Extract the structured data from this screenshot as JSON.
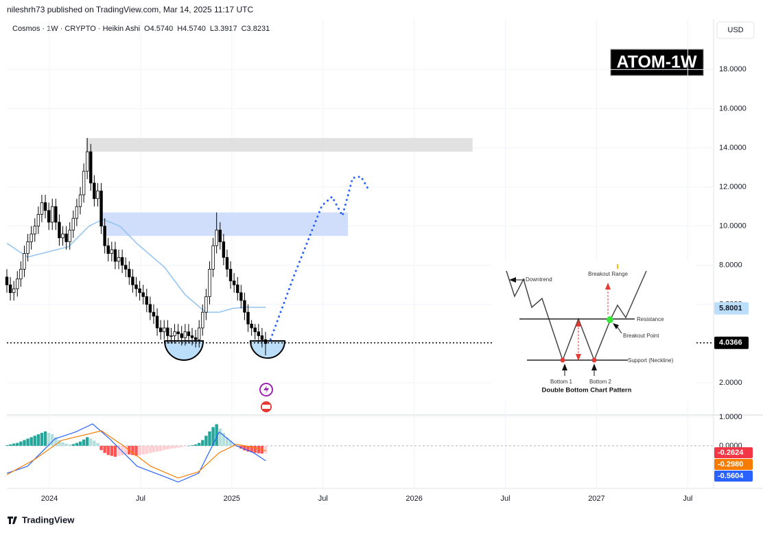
{
  "header": {
    "publisher": "nileshrh73 published on TradingView.com, Mar 14, 2025 11:17 UTC",
    "legend": "Cosmos · 1W · CRYPTO · Heikin Ashi",
    "ohlc": [
      "O4.5740",
      "H4.5740",
      "L3.3917",
      "C3.8231"
    ],
    "currency": "USD",
    "badge": "ATOM-1W"
  },
  "chart_data": [
    {
      "type": "candlestick",
      "x": [
        -2.8,
        -2.57,
        -2.34,
        -2.11,
        -1.88,
        -1.65,
        -1.42,
        -1.19,
        -0.96,
        -0.73,
        -0.5,
        -0.27,
        -0.04,
        0.19,
        0.42,
        0.65,
        0.88,
        1.11,
        1.34,
        1.57,
        1.8,
        2.03,
        2.26,
        2.49,
        2.72,
        2.95,
        3.18,
        3.41,
        3.64,
        3.87,
        4.1,
        4.33,
        4.56,
        4.79,
        5.02,
        5.25,
        5.48,
        5.71,
        5.94,
        6.17,
        6.4,
        6.63,
        6.86,
        7.09,
        7.32,
        7.55,
        7.78,
        8.01,
        8.24,
        8.47,
        8.7,
        8.93,
        9.16,
        9.39,
        9.62,
        9.85,
        10.08,
        10.31,
        10.54,
        10.77,
        11.0,
        11.23,
        11.46,
        11.69,
        11.92,
        12.15,
        12.38,
        12.61,
        12.84,
        13.07,
        13.3,
        13.53,
        13.76,
        13.99,
        14.22
      ],
      "open": [
        7.4,
        7.0,
        6.6,
        6.8,
        7.3,
        7.8,
        8.6,
        9.2,
        9.6,
        10.0,
        10.6,
        11.2,
        10.8,
        10.2,
        11.0,
        10.2,
        9.4,
        9.6,
        9.2,
        9.8,
        10.4,
        11.0,
        11.6,
        12.8,
        13.8,
        12.2,
        11.4,
        11.8,
        10.0,
        9.0,
        8.6,
        8.8,
        8.2,
        8.4,
        8.0,
        7.8,
        7.4,
        7.0,
        6.8,
        6.6,
        6.4,
        6.0,
        5.6,
        5.4,
        4.8,
        4.6,
        4.8,
        4.4,
        4.4,
        4.6,
        4.5,
        4.3,
        4.6,
        4.4,
        4.3,
        4.2,
        4.8,
        5.6,
        6.4,
        7.8,
        9.0,
        9.8,
        9.2,
        8.4,
        7.8,
        7.2,
        7.0,
        6.6,
        6.2,
        5.6,
        5.0,
        4.8,
        4.6,
        4.4,
        4.2
      ],
      "high": [
        7.8,
        7.4,
        7.2,
        7.7,
        8.2,
        9.0,
        9.6,
        10.0,
        10.4,
        11.0,
        11.6,
        11.6,
        11.2,
        11.4,
        11.4,
        10.6,
        10.0,
        10.0,
        10.2,
        10.8,
        11.4,
        12.0,
        13.2,
        14.5,
        14.2,
        12.6,
        12.2,
        12.2,
        10.4,
        9.4,
        9.2,
        9.2,
        8.8,
        8.8,
        8.4,
        8.2,
        7.8,
        7.4,
        7.2,
        7.0,
        6.8,
        6.4,
        6.0,
        5.8,
        5.2,
        5.2,
        5.2,
        4.8,
        5.0,
        5.0,
        4.9,
        5.0,
        5.0,
        4.8,
        4.7,
        5.2,
        6.0,
        6.8,
        8.2,
        9.4,
        10.7,
        10.2,
        9.6,
        8.8,
        8.2,
        7.6,
        7.4,
        7.0,
        6.6,
        6.0,
        5.2,
        5.0,
        5.0,
        4.8,
        4.6
      ],
      "low": [
        6.6,
        6.2,
        6.2,
        6.4,
        6.9,
        7.4,
        8.2,
        8.8,
        9.2,
        9.6,
        10.2,
        10.4,
        9.8,
        9.8,
        9.8,
        9.0,
        9.0,
        8.8,
        8.8,
        9.4,
        10.0,
        10.6,
        11.2,
        12.4,
        11.8,
        11.0,
        11.0,
        9.6,
        8.6,
        8.2,
        8.2,
        7.8,
        7.8,
        7.6,
        7.4,
        7.0,
        6.6,
        6.4,
        6.2,
        6.0,
        5.6,
        5.2,
        5.0,
        4.4,
        4.2,
        4.2,
        4.0,
        4.0,
        4.0,
        4.1,
        3.9,
        3.9,
        4.0,
        3.9,
        3.8,
        3.8,
        4.4,
        5.2,
        6.0,
        7.4,
        8.6,
        8.8,
        8.0,
        7.4,
        6.8,
        6.6,
        6.2,
        5.8,
        5.2,
        4.6,
        4.4,
        4.2,
        4.0,
        3.8,
        3.4
      ],
      "close": [
        7.0,
        6.6,
        6.8,
        7.3,
        7.8,
        8.6,
        9.2,
        9.6,
        10.0,
        10.6,
        11.2,
        10.8,
        10.2,
        11.0,
        10.2,
        9.4,
        9.6,
        9.2,
        9.8,
        10.4,
        11.0,
        11.6,
        12.8,
        13.8,
        12.2,
        11.4,
        11.8,
        10.0,
        9.0,
        8.6,
        8.8,
        8.2,
        8.4,
        8.0,
        7.8,
        7.4,
        7.0,
        6.8,
        6.6,
        6.4,
        6.0,
        5.6,
        5.4,
        4.8,
        4.6,
        4.8,
        4.4,
        4.4,
        4.6,
        4.5,
        4.3,
        4.6,
        4.4,
        4.3,
        4.2,
        4.8,
        5.6,
        6.4,
        7.8,
        9.0,
        9.8,
        9.2,
        8.4,
        7.8,
        7.2,
        7.0,
        6.6,
        6.2,
        5.6,
        5.0,
        4.8,
        4.6,
        4.4,
        4.2,
        4.0
      ],
      "up_color": "#ffffff",
      "down_color": "#000000",
      "xlim": [
        -2.8,
        43.7
      ],
      "xticks": [
        {
          "value": 0,
          "label": "2024"
        },
        {
          "value": 6,
          "label": "Jul"
        },
        {
          "value": 12,
          "label": "2025"
        },
        {
          "value": 18,
          "label": "Jul"
        },
        {
          "value": 24,
          "label": "2026"
        },
        {
          "value": 30,
          "label": "Jul"
        },
        {
          "value": 36,
          "label": "2027"
        },
        {
          "value": 42,
          "label": "Jul"
        }
      ],
      "ylim": [
        0.35,
        20.5
      ],
      "yticks": [
        {
          "value": 2,
          "label": "2.0000"
        },
        {
          "value": 6,
          "label": "6.0000"
        },
        {
          "value": 8,
          "label": "8.0000"
        },
        {
          "value": 10,
          "label": "10.0000"
        },
        {
          "value": 12,
          "label": "12.0000"
        },
        {
          "value": 14,
          "label": "14.0000"
        },
        {
          "value": 16,
          "label": "16.0000"
        },
        {
          "value": 18,
          "label": "18.0000"
        }
      ],
      "grid": true,
      "series": [
        {
          "color": "#90c2f0",
          "dashed": false,
          "x": [
            -2.79,
            -1.44,
            1.26,
            2.61,
            3.51,
            4.64,
            5.77,
            7.57,
            8.92,
            10.27,
            11.17,
            12.07,
            12.97,
            14.23
          ],
          "values": [
            9.12,
            8.42,
            8.95,
            10.0,
            10.35,
            10.0,
            9.1,
            7.9,
            6.5,
            5.6,
            5.6,
            5.8,
            5.85,
            5.85
          ]
        },
        {
          "color": "#2962ff",
          "dashed": true,
          "x": [
            14.55,
            16.13,
            17.93,
            18.6,
            19.28,
            19.95,
            20.5,
            20.95
          ],
          "values": [
            4.21,
            7.54,
            11.05,
            11.5,
            10.53,
            12.46,
            12.53,
            11.93
          ]
        }
      ],
      "zones": [
        {
          "x": [
            2.39,
            27.84
          ],
          "y": [
            13.8,
            14.5
          ],
          "color": "#dcdcdc"
        },
        {
          "x": [
            3.51,
            19.64
          ],
          "y": [
            9.5,
            10.7
          ],
          "color": "#c8d8fa"
        }
      ],
      "price_labels": [
        {
          "value": 5.8001,
          "color": "#bbdefb",
          "text_color": "#131722"
        },
        {
          "value": 4.0366,
          "color": "#000000",
          "text_color": "#ffffff",
          "line": true
        }
      ]
    },
    {
      "type": "macd",
      "histogram": [
        0.02,
        0.05,
        0.08,
        0.1,
        0.15,
        0.2,
        0.25,
        0.3,
        0.35,
        0.4,
        0.45,
        0.5,
        0.45,
        0.4,
        0.3,
        0.2,
        0.12,
        0.08,
        0.05,
        0.06,
        0.1,
        0.15,
        0.22,
        0.3,
        0.25,
        0.18,
        0.1,
        -0.15,
        -0.25,
        -0.32,
        -0.35,
        -0.38,
        -0.35,
        -0.33,
        -0.3,
        -0.3,
        -0.32,
        -0.35,
        -0.33,
        -0.3,
        -0.28,
        -0.25,
        -0.22,
        -0.2,
        -0.18,
        -0.15,
        -0.12,
        -0.1,
        -0.08,
        -0.06,
        -0.04,
        -0.02,
        0.0,
        0.02,
        0.05,
        0.1,
        0.2,
        0.35,
        0.5,
        0.65,
        0.75,
        0.6,
        0.45,
        0.3,
        0.18,
        0.08,
        -0.02,
        -0.1,
        -0.16,
        -0.2,
        -0.22,
        -0.24,
        -0.26,
        -0.27,
        -0.26
      ],
      "ylim": [
        -1.48,
        1.07
      ],
      "yticks": [
        {
          "value": 1,
          "label": "1.0000"
        },
        {
          "value": 0,
          "label": "0.0000"
        }
      ],
      "series": [
        {
          "color": "#2962ff",
          "x": [
            -2.79,
            -1.44,
            0.36,
            1.71,
            2.84,
            3.97,
            5.77,
            7.57,
            8.47,
            9.82,
            11.17,
            12.3,
            13.43,
            14.23
          ],
          "values": [
            -0.95,
            -0.71,
            0.24,
            0.48,
            0.76,
            0.24,
            -0.71,
            -1.07,
            -1.26,
            -0.95,
            0.48,
            0.0,
            -0.24,
            -0.52
          ]
        },
        {
          "color": "#f57c00",
          "x": [
            -2.79,
            -0.99,
            0.81,
            2.16,
            3.43,
            4.87,
            6.67,
            8.47,
            9.82,
            11.17,
            12.3,
            13.43,
            14.23
          ],
          "values": [
            -1.0,
            -0.48,
            0.19,
            0.36,
            0.52,
            0.0,
            -0.71,
            -1.12,
            -0.9,
            -0.24,
            0.05,
            -0.05,
            -0.17
          ]
        }
      ],
      "last_values": [
        {
          "value": -0.2624,
          "color": "#f23645"
        },
        {
          "value": -0.298,
          "label": "-0.2980",
          "color": "#f57c00"
        },
        {
          "value": -0.5604,
          "color": "#2962ff"
        }
      ]
    }
  ],
  "inset": {
    "title": "Double Bottom Chart Pattern",
    "downtrend": "Downtrend",
    "breakout_range": "Breakout Range",
    "resistance": "Resistance",
    "breakout_point": "Breakout Point",
    "support": "Support (Neckline)",
    "bottom1": "Bottom 1",
    "bottom2": "Bottom 2"
  },
  "footer": "TradingView"
}
